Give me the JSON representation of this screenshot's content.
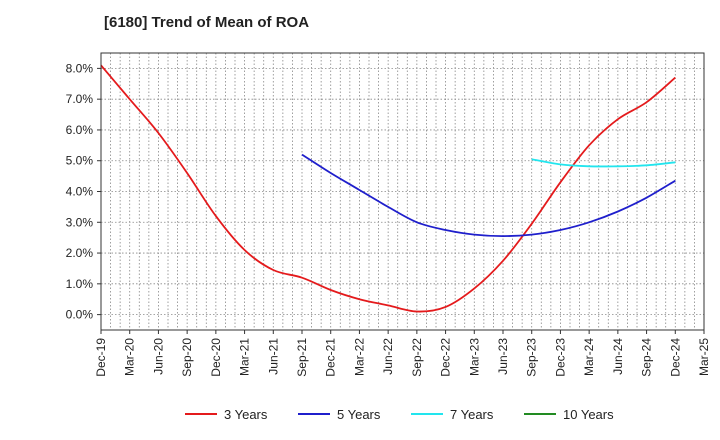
{
  "chart_data": {
    "type": "line",
    "title": "[6180]  Trend of Mean of ROA",
    "xlabel": "",
    "ylabel": "",
    "ylim": [
      -0.5,
      8.5
    ],
    "yticks": [
      0,
      1,
      2,
      3,
      4,
      5,
      6,
      7,
      8
    ],
    "ytick_labels": [
      "0.0%",
      "1.0%",
      "2.0%",
      "3.0%",
      "4.0%",
      "5.0%",
      "6.0%",
      "7.0%",
      "8.0%"
    ],
    "x_categories": [
      "Dec-19",
      "Mar-20",
      "Jun-20",
      "Sep-20",
      "Dec-20",
      "Mar-21",
      "Jun-21",
      "Sep-21",
      "Dec-21",
      "Mar-22",
      "Jun-22",
      "Sep-22",
      "Dec-22",
      "Mar-23",
      "Jun-23",
      "Sep-23",
      "Dec-23",
      "Mar-24",
      "Jun-24",
      "Sep-24",
      "Dec-24",
      "Mar-25"
    ],
    "grid": true,
    "legend_position": "bottom",
    "series": [
      {
        "name": "3 Years",
        "color": "#e41a1c",
        "values": [
          8.1,
          7.0,
          5.9,
          4.6,
          3.2,
          2.1,
          1.45,
          1.2,
          0.8,
          0.5,
          0.3,
          0.1,
          0.25,
          0.85,
          1.75,
          2.95,
          4.3,
          5.5,
          6.35,
          6.9,
          7.7,
          null
        ]
      },
      {
        "name": "5 Years",
        "color": "#1f1fcc",
        "values": [
          null,
          null,
          null,
          null,
          null,
          null,
          null,
          5.2,
          4.6,
          4.05,
          3.5,
          3.0,
          2.75,
          2.6,
          2.55,
          2.6,
          2.75,
          3.0,
          3.35,
          3.8,
          4.35,
          null
        ]
      },
      {
        "name": "7 Years",
        "color": "#22e5ee",
        "values": [
          null,
          null,
          null,
          null,
          null,
          null,
          null,
          null,
          null,
          null,
          null,
          null,
          null,
          null,
          null,
          5.05,
          4.88,
          4.82,
          4.82,
          4.85,
          4.95,
          null
        ]
      },
      {
        "name": "10 Years",
        "color": "#228b22",
        "values": [
          null,
          null,
          null,
          null,
          null,
          null,
          null,
          null,
          null,
          null,
          null,
          null,
          null,
          null,
          null,
          null,
          null,
          null,
          null,
          null,
          null,
          null
        ]
      }
    ]
  }
}
